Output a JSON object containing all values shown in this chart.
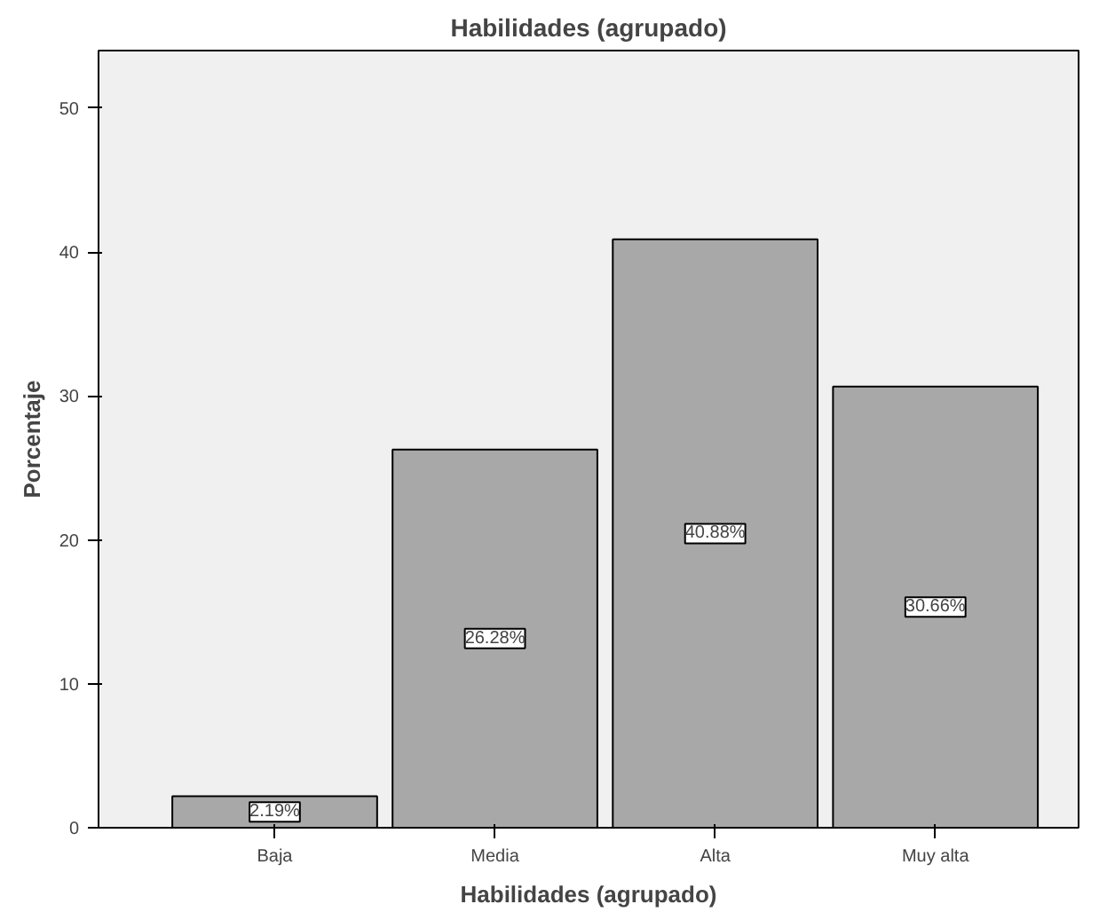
{
  "chart_data": {
    "type": "bar",
    "title": "Habilidades (agrupado)",
    "xlabel": "Habilidades (agrupado)",
    "ylabel": "Porcentaje",
    "categories": [
      "Baja",
      "Media",
      "Alta",
      "Muy alta"
    ],
    "values": [
      2.19,
      26.28,
      40.88,
      30.66
    ],
    "value_labels": [
      "2.19%",
      "26.28%",
      "40.88%",
      "30.66%"
    ],
    "color": "#a8a8a8",
    "ylim": [
      0,
      54
    ],
    "yticks": [
      0,
      10,
      20,
      30,
      40,
      50
    ],
    "grid": false
  }
}
